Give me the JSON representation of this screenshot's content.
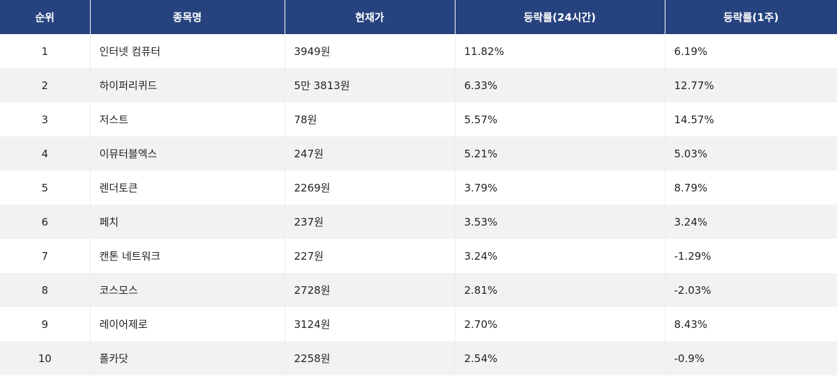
{
  "table": {
    "headers": {
      "rank": "순위",
      "name": "종목명",
      "price": "현재가",
      "change_24h": "등락률(24시간)",
      "change_1w": "등락률(1주)"
    },
    "rows": [
      {
        "rank": "1",
        "name": "인터넷 컴퓨터",
        "price": "3949원",
        "change_24h": "11.82%",
        "change_1w": "6.19%"
      },
      {
        "rank": "2",
        "name": "하이퍼리퀴드",
        "price": "5만 3813원",
        "change_24h": "6.33%",
        "change_1w": "12.77%"
      },
      {
        "rank": "3",
        "name": "저스트",
        "price": "78원",
        "change_24h": "5.57%",
        "change_1w": "14.57%"
      },
      {
        "rank": "4",
        "name": "이뮤터블엑스",
        "price": "247원",
        "change_24h": "5.21%",
        "change_1w": "5.03%"
      },
      {
        "rank": "5",
        "name": "렌더토큰",
        "price": "2269원",
        "change_24h": "3.79%",
        "change_1w": "8.79%"
      },
      {
        "rank": "6",
        "name": "페치",
        "price": "237원",
        "change_24h": "3.53%",
        "change_1w": "3.24%"
      },
      {
        "rank": "7",
        "name": "캔톤 네트워크",
        "price": "227원",
        "change_24h": "3.24%",
        "change_1w": "-1.29%"
      },
      {
        "rank": "8",
        "name": "코스모스",
        "price": "2728원",
        "change_24h": "2.81%",
        "change_1w": "-2.03%"
      },
      {
        "rank": "9",
        "name": "레이어제로",
        "price": "3124원",
        "change_24h": "2.70%",
        "change_1w": "8.43%"
      },
      {
        "rank": "10",
        "name": "폴카닷",
        "price": "2258원",
        "change_24h": "2.54%",
        "change_1w": "-0.9%"
      }
    ]
  },
  "colors": {
    "header_bg": "#27437f",
    "header_text": "#ffffff",
    "row_alt_bg": "#f2f2f2",
    "row_bg": "#ffffff",
    "text": "#222222"
  }
}
